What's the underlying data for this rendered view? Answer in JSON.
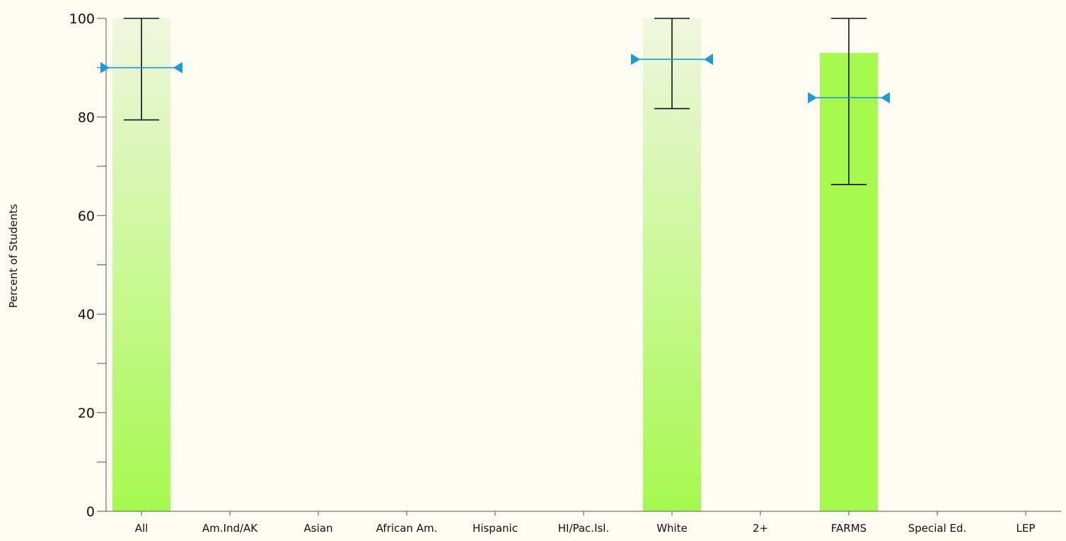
{
  "chart_data": {
    "type": "bar",
    "ylabel": "Percent of Students",
    "ylim": [
      0,
      100
    ],
    "y_ticks": [
      0,
      20,
      40,
      60,
      80,
      100
    ],
    "y_minor_step": 10,
    "grid": false,
    "categories": [
      "All",
      "Am.Ind/AK",
      "Asian",
      "African Am.",
      "Hispanic",
      "HI/Pac.Isl.",
      "White",
      "2+",
      "FARMS",
      "Special Ed.",
      "LEP"
    ],
    "series": [
      {
        "values": [
          100,
          null,
          null,
          null,
          null,
          null,
          100,
          null,
          93,
          null,
          null
        ],
        "error_low": [
          79.4,
          null,
          null,
          null,
          null,
          null,
          81.7,
          null,
          66.3,
          null,
          null
        ],
        "error_high": [
          100,
          null,
          null,
          null,
          null,
          null,
          100,
          null,
          100,
          null,
          null
        ],
        "target": [
          90,
          null,
          null,
          null,
          null,
          null,
          91.7,
          null,
          83.9,
          null,
          null
        ],
        "fill_style": [
          "gradient",
          null,
          null,
          null,
          null,
          null,
          "gradient",
          null,
          "solid",
          null,
          null
        ]
      }
    ],
    "colors": {
      "bar_solid": "#a6f94f",
      "bar_gradient_top": "#eff6df",
      "bar_gradient_bottom": "#a6f94f",
      "error_bar": "#111111",
      "target_line": "#1e9ad8",
      "axis": "#555555",
      "background": "#fefbf3"
    }
  }
}
